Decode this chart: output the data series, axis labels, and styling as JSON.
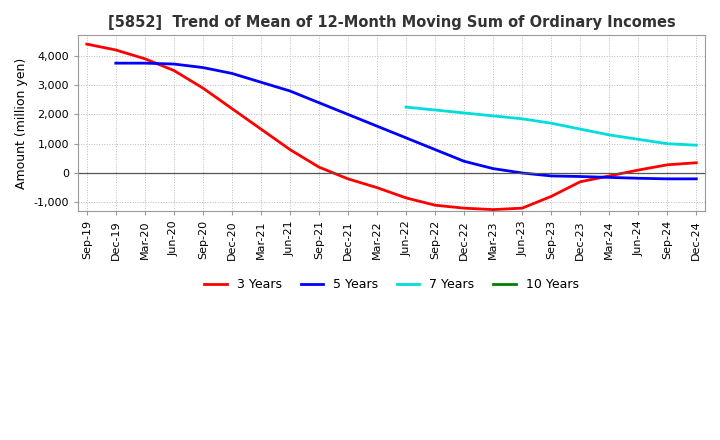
{
  "title": "[5852]  Trend of Mean of 12-Month Moving Sum of Ordinary Incomes",
  "ylabel": "Amount (million yen)",
  "ylim": [
    -1300,
    4700
  ],
  "yticks": [
    -1000,
    0,
    1000,
    2000,
    3000,
    4000
  ],
  "background_color": "#ffffff",
  "grid_color": "#bbbbbb",
  "legend_labels": [
    "3 Years",
    "5 Years",
    "7 Years",
    "10 Years"
  ],
  "legend_colors": [
    "#ff0000",
    "#0000ff",
    "#00dddd",
    "#008000"
  ],
  "x_labels": [
    "Sep-19",
    "Dec-19",
    "Mar-20",
    "Jun-20",
    "Sep-20",
    "Dec-20",
    "Mar-21",
    "Jun-21",
    "Sep-21",
    "Dec-21",
    "Mar-22",
    "Jun-22",
    "Sep-22",
    "Dec-22",
    "Mar-23",
    "Jun-23",
    "Sep-23",
    "Dec-23",
    "Mar-24",
    "Jun-24",
    "Sep-24",
    "Dec-24"
  ],
  "series_3y": [
    4400,
    4200,
    3900,
    3500,
    2900,
    2200,
    1500,
    800,
    200,
    -200,
    -500,
    -850,
    -1100,
    -1200,
    -1250,
    -1200,
    -800,
    -300,
    -100,
    100,
    280,
    350
  ],
  "series_5y": [
    null,
    3750,
    3750,
    3720,
    3600,
    3400,
    3100,
    2800,
    2400,
    2000,
    1600,
    1200,
    800,
    400,
    150,
    0,
    -100,
    -120,
    -150,
    -180,
    -200,
    -200
  ],
  "series_7y": [
    null,
    null,
    null,
    null,
    null,
    null,
    null,
    null,
    null,
    null,
    null,
    2250,
    2150,
    2050,
    1950,
    1850,
    1700,
    1500,
    1300,
    1150,
    1000,
    950
  ],
  "series_10y": [
    null,
    null,
    null,
    null,
    null,
    null,
    null,
    null,
    null,
    null,
    null,
    null,
    null,
    null,
    null,
    null,
    null,
    null,
    null,
    null,
    null,
    null
  ]
}
